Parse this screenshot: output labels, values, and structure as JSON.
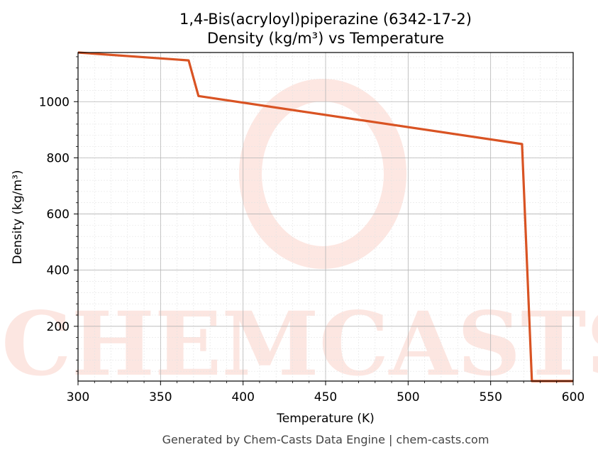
{
  "chart_data": {
    "type": "line",
    "title": "1,4-Bis(acryloyl)piperazine (6342-17-2)",
    "subtitle": "Density (kg/m³) vs Temperature",
    "xlabel": "Temperature (K)",
    "ylabel": "Density (kg/m³)",
    "xlim": [
      300,
      600
    ],
    "ylim": [
      5,
      1175
    ],
    "xticks": [
      "300",
      "350",
      "400",
      "450",
      "500",
      "550",
      "600"
    ],
    "yticks": [
      "200",
      "400",
      "600",
      "800",
      "1000"
    ],
    "grid": true,
    "line_color": "#d95323",
    "series": [
      {
        "x": [
          300,
          367,
          373,
          569,
          575,
          600
        ],
        "values": [
          1175,
          1147,
          1020,
          849,
          5,
          5
        ]
      }
    ]
  },
  "watermark": "CHEMCASTS",
  "footer": "Generated by Chem-Casts Data Engine | chem-casts.com"
}
